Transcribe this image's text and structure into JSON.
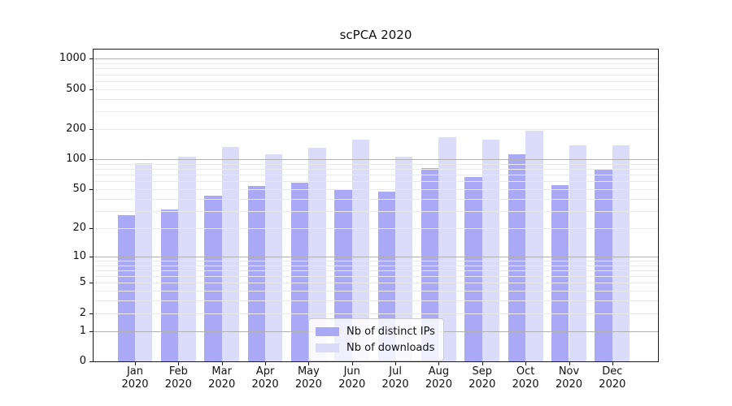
{
  "chart_data": {
    "type": "bar",
    "title": "scPCA 2020",
    "categories": [
      {
        "month": "Jan",
        "year": "2020"
      },
      {
        "month": "Feb",
        "year": "2020"
      },
      {
        "month": "Mar",
        "year": "2020"
      },
      {
        "month": "Apr",
        "year": "2020"
      },
      {
        "month": "May",
        "year": "2020"
      },
      {
        "month": "Jun",
        "year": "2020"
      },
      {
        "month": "Jul",
        "year": "2020"
      },
      {
        "month": "Aug",
        "year": "2020"
      },
      {
        "month": "Sep",
        "year": "2020"
      },
      {
        "month": "Oct",
        "year": "2020"
      },
      {
        "month": "Nov",
        "year": "2020"
      },
      {
        "month": "Dec",
        "year": "2020"
      }
    ],
    "series": [
      {
        "name": "Nb of distinct IPs",
        "color": "#a9a9f6",
        "values": [
          27,
          31,
          43,
          54,
          58,
          49,
          47,
          82,
          66,
          112,
          55,
          80
        ]
      },
      {
        "name": "Nb of downloads",
        "color": "#dbdbfa",
        "values": [
          92,
          105,
          133,
          112,
          130,
          157,
          106,
          166,
          157,
          194,
          137,
          137
        ]
      }
    ],
    "yscale": "log(1+x)",
    "ytick_values": [
      0,
      1,
      2,
      5,
      10,
      20,
      50,
      100,
      200,
      500,
      1000
    ],
    "ylim": [
      0,
      1230
    ],
    "grid": true,
    "legend_position": "lower center"
  },
  "colors": {
    "major_grid": "#b0b0b0",
    "minor_grid": "#e9e9e9",
    "spine": "#1a1a1a",
    "text": "#111111",
    "legend_border": "#cccccc"
  }
}
